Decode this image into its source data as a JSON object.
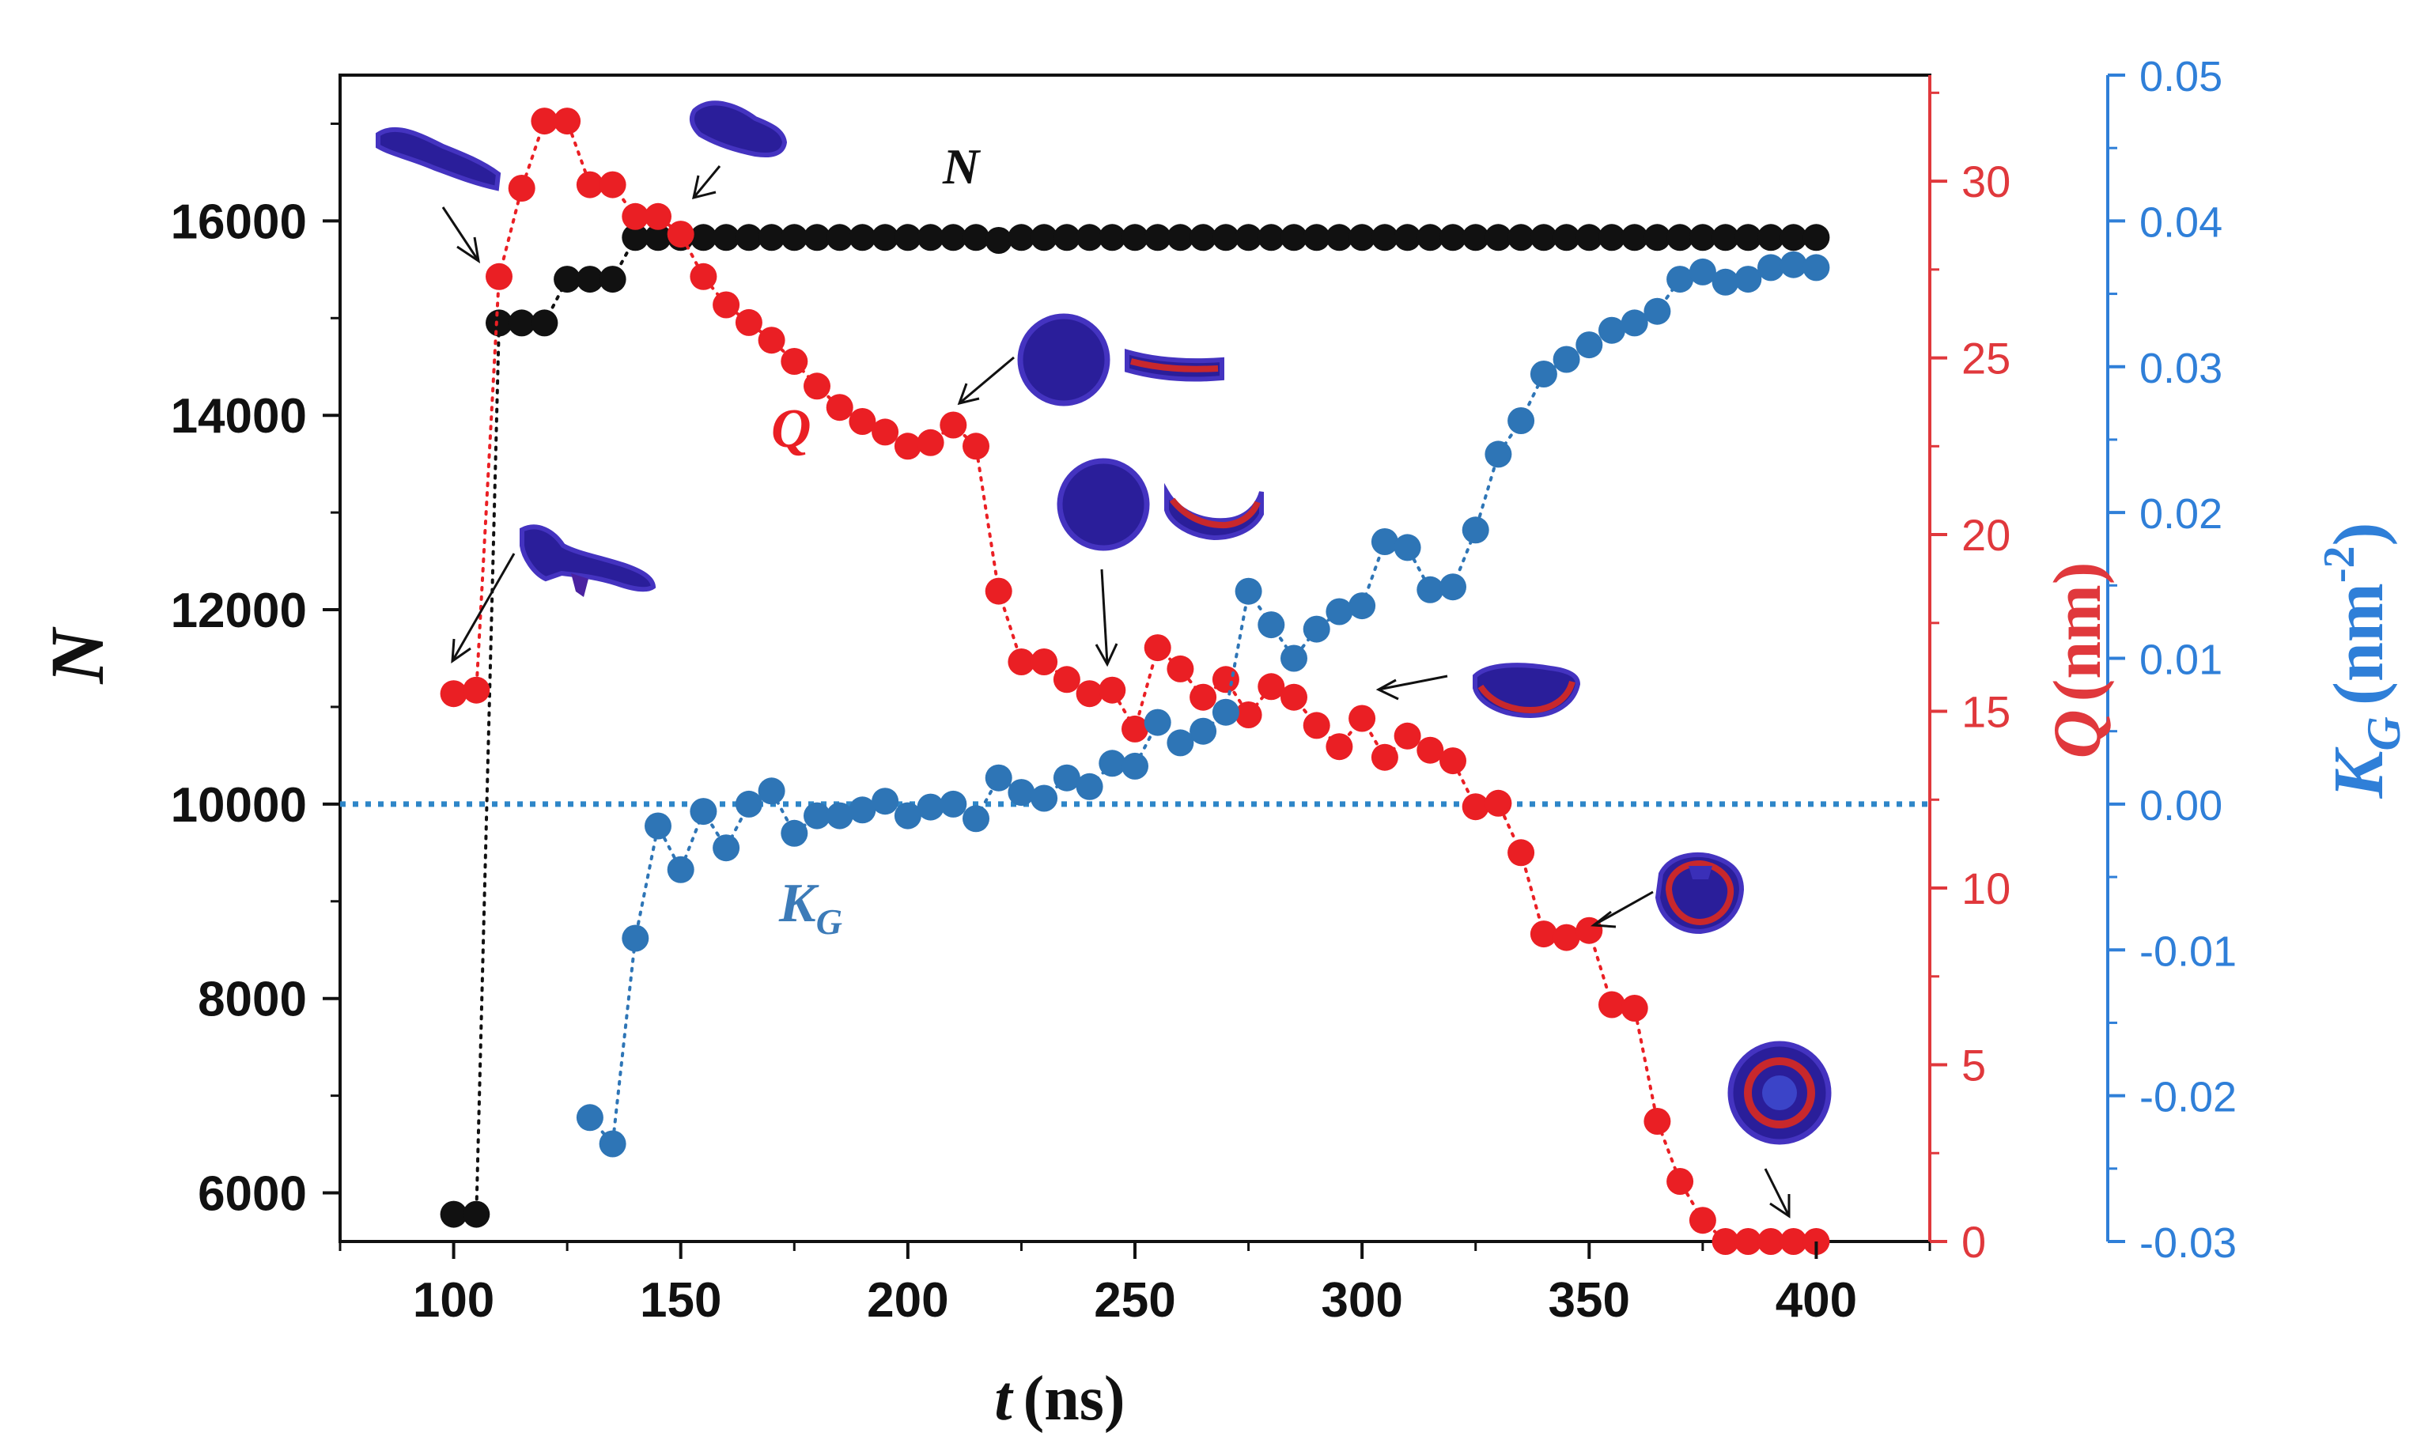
{
  "chart_data": {
    "type": "scatter",
    "title": "",
    "xlabel": {
      "symbol": "t",
      "unit": "(ns)"
    },
    "x_ticks": [
      "100",
      "150",
      "200",
      "250",
      "300",
      "350",
      "400"
    ],
    "xlim": [
      75,
      425
    ],
    "axes": {
      "left": {
        "label": "N",
        "ylim": [
          5500,
          17500
        ],
        "ticks": [
          "6000",
          "8000",
          "10000",
          "12000",
          "14000",
          "16000"
        ],
        "color": "#111111"
      },
      "right_inner": {
        "label_symbol": "Q",
        "label_unit": "(nm)",
        "ylim": [
          0,
          33
        ],
        "ticks": [
          "0",
          "5",
          "10",
          "15",
          "20",
          "25",
          "30"
        ],
        "color": "#e0383c"
      },
      "right_outer": {
        "label_symbol": "K",
        "label_sub": "G",
        "label_unit_open": "(nm",
        "label_unit_exp": "-2",
        "label_unit_close": ")",
        "ylim": [
          -0.03,
          0.05
        ],
        "ticks": [
          "-0.03",
          "-0.02",
          "-0.01",
          "0.00",
          "0.01",
          "0.02",
          "0.03",
          "0.04",
          "0.05"
        ],
        "color": "#2f7fd8"
      }
    },
    "series": [
      {
        "name": "N",
        "axis": "left",
        "color": "#111111",
        "x": [
          100,
          105,
          110,
          115,
          120,
          125,
          130,
          135,
          140,
          145,
          150,
          155,
          160,
          165,
          170,
          175,
          180,
          185,
          190,
          195,
          200,
          205,
          210,
          215,
          220,
          225,
          230,
          235,
          240,
          245,
          250,
          255,
          260,
          265,
          270,
          275,
          280,
          285,
          290,
          295,
          300,
          305,
          310,
          315,
          320,
          325,
          330,
          335,
          340,
          345,
          350,
          355,
          360,
          365,
          370,
          375,
          380,
          385,
          390,
          395,
          400
        ],
        "y": [
          5780,
          5780,
          14950,
          14950,
          14950,
          15400,
          15400,
          15400,
          15830,
          15830,
          15830,
          15830,
          15830,
          15830,
          15830,
          15830,
          15830,
          15830,
          15830,
          15830,
          15830,
          15830,
          15830,
          15830,
          15800,
          15830,
          15830,
          15830,
          15830,
          15830,
          15830,
          15830,
          15830,
          15830,
          15830,
          15830,
          15830,
          15830,
          15830,
          15830,
          15830,
          15830,
          15830,
          15830,
          15830,
          15830,
          15830,
          15830,
          15830,
          15830,
          15830,
          15830,
          15830,
          15830,
          15830,
          15830,
          15830,
          15830,
          15830,
          15830,
          15830
        ]
      },
      {
        "name": "Q",
        "axis": "right_inner",
        "color": "#ea1f24",
        "x": [
          100,
          105,
          110,
          115,
          120,
          125,
          130,
          135,
          140,
          145,
          150,
          155,
          160,
          165,
          170,
          175,
          180,
          185,
          190,
          195,
          200,
          205,
          210,
          215,
          220,
          225,
          230,
          235,
          240,
          245,
          250,
          255,
          260,
          265,
          270,
          275,
          280,
          285,
          290,
          295,
          300,
          305,
          310,
          315,
          320,
          325,
          330,
          335,
          340,
          345,
          350,
          355,
          360,
          365,
          370,
          375,
          380,
          385,
          390,
          395,
          400
        ],
        "y": [
          15.5,
          15.6,
          27.3,
          29.8,
          31.7,
          31.7,
          29.9,
          29.9,
          29.0,
          29.0,
          28.5,
          27.3,
          26.5,
          26.0,
          25.5,
          24.9,
          24.2,
          23.6,
          23.2,
          22.9,
          22.5,
          22.6,
          23.1,
          22.5,
          18.4,
          16.4,
          16.4,
          15.9,
          15.5,
          15.6,
          14.5,
          16.8,
          16.2,
          15.4,
          15.9,
          14.9,
          15.7,
          15.4,
          14.6,
          14.0,
          14.8,
          13.7,
          14.3,
          13.9,
          13.6,
          12.3,
          12.4,
          11.0,
          8.7,
          8.6,
          8.8,
          6.7,
          6.6,
          3.4,
          1.7,
          0.6,
          0.0,
          0.0,
          0.0,
          0.0,
          0.0
        ]
      },
      {
        "name": "K_G",
        "axis": "right_outer",
        "color": "#2e75b6",
        "x": [
          130,
          135,
          140,
          145,
          150,
          155,
          160,
          165,
          170,
          175,
          180,
          185,
          190,
          195,
          200,
          205,
          210,
          215,
          220,
          225,
          230,
          235,
          240,
          245,
          250,
          255,
          260,
          265,
          270,
          275,
          280,
          285,
          290,
          295,
          300,
          305,
          310,
          315,
          320,
          325,
          330,
          335,
          340,
          345,
          350,
          355,
          360,
          365,
          370,
          375,
          380,
          385,
          390,
          395,
          400
        ],
        "y": [
          -0.0215,
          -0.0233,
          -0.0092,
          -0.0015,
          -0.0045,
          -0.0005,
          -0.003,
          0.0,
          0.0009,
          -0.002,
          -0.0008,
          -0.0008,
          -0.0004,
          0.0002,
          -0.0008,
          -0.0002,
          0.0,
          -0.001,
          0.0018,
          0.0008,
          0.0004,
          0.0018,
          0.0012,
          0.0028,
          0.0026,
          0.0056,
          0.0042,
          0.005,
          0.0063,
          0.0146,
          0.0123,
          0.01,
          0.012,
          0.0132,
          0.0136,
          0.018,
          0.0176,
          0.0147,
          0.0149,
          0.0188,
          0.024,
          0.0263,
          0.0295,
          0.0305,
          0.0315,
          0.0325,
          0.033,
          0.0338,
          0.036,
          0.0365,
          0.0358,
          0.036,
          0.0368,
          0.037,
          0.0368
        ]
      }
    ],
    "reference_line": {
      "axis": "right_outer",
      "value": 0.0,
      "color": "#2e86c8",
      "style": "dotted"
    },
    "annotations": [
      {
        "text": "N",
        "color": "#111111"
      },
      {
        "text": "Q",
        "color": "#ea1f24"
      },
      {
        "text": "K",
        "sub": "G",
        "color": "#3c7bb8"
      }
    ],
    "colors": {
      "membrane_fill": "#2a1e9a",
      "membrane_edge": "#4433c0",
      "membrane_rim": "#c8282c"
    }
  }
}
